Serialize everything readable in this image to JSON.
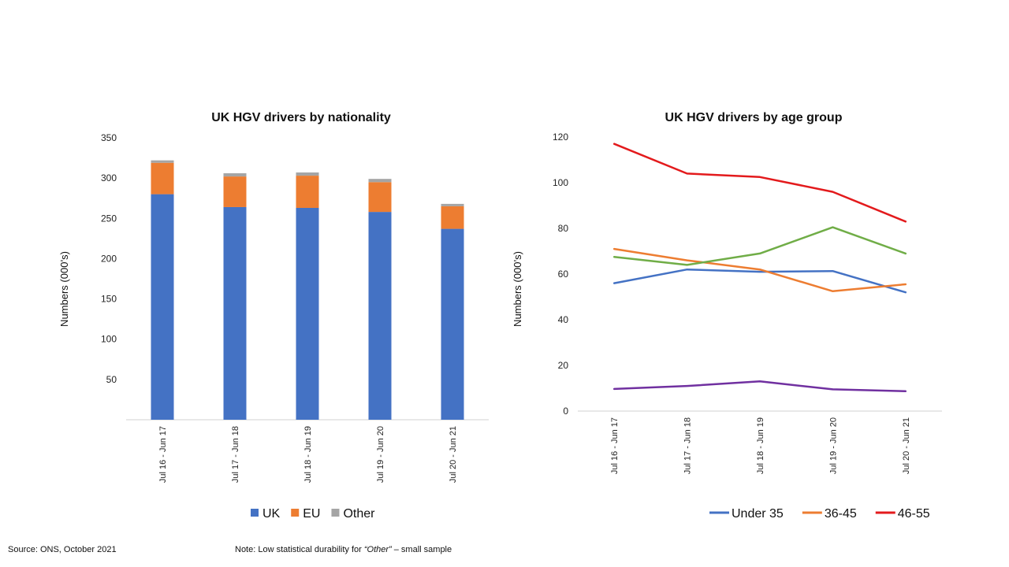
{
  "footer": {
    "source": "Source: ONS, October 2021",
    "note_prefix": "Note: Low statistical durability for ",
    "note_italic": "“Other”",
    "note_suffix": " – small sample"
  },
  "chart_data": [
    {
      "type": "bar",
      "stacked": true,
      "title": "UK HGV drivers by nationality",
      "xlabel": "",
      "ylabel": "Numbers (000’s)",
      "ylim": [
        0,
        350
      ],
      "yticks": [
        50,
        100,
        150,
        200,
        250,
        300,
        350
      ],
      "grid": false,
      "legend_position": "bottom",
      "categories": [
        "Jul 16 - Jun 17",
        "Jul 17 - Jun 18",
        "Jul 18 - Jun 19",
        "Jul 19 - Jun 20",
        "Jul 20 - Jun 21"
      ],
      "series": [
        {
          "name": "UK",
          "color": "#4472C4",
          "values": [
            280,
            264,
            263,
            258,
            237
          ]
        },
        {
          "name": "EU",
          "color": "#ED7D31",
          "values": [
            39,
            38,
            40,
            37,
            28
          ]
        },
        {
          "name": "Other",
          "color": "#A5A5A5",
          "values": [
            3,
            4,
            4,
            4,
            3
          ]
        }
      ]
    },
    {
      "type": "line",
      "title": "UK HGV drivers by age group",
      "xlabel": "",
      "ylabel": "Numbers (000’s)",
      "ylim": [
        0,
        120
      ],
      "yticks": [
        0,
        20,
        40,
        60,
        80,
        100,
        120
      ],
      "grid": false,
      "legend_position": "bottom",
      "categories": [
        "Jul 16 - Jun 17",
        "Jul 17 - Jun 18",
        "Jul 18 - Jun 19",
        "Jul 19 - Jun 20",
        "Jul 20 - Jun 21"
      ],
      "series": [
        {
          "name": "Under 35",
          "color": "#4472C4",
          "values": [
            56,
            62,
            61,
            61.3,
            52
          ],
          "in_legend": true
        },
        {
          "name": "36-45",
          "color": "#ED7D31",
          "values": [
            71,
            66,
            62,
            52.5,
            55.5
          ],
          "in_legend": true
        },
        {
          "name": "46-55",
          "color": "#E31A1C",
          "values": [
            117,
            104,
            102.5,
            96,
            83
          ],
          "in_legend": true
        },
        {
          "name": "",
          "color": "#70AD47",
          "values": [
            67.5,
            64,
            69,
            80.5,
            69
          ],
          "in_legend": false
        },
        {
          "name": "",
          "color": "#7030A0",
          "values": [
            9.7,
            11,
            13,
            9.5,
            8.7
          ],
          "in_legend": false
        }
      ]
    }
  ]
}
